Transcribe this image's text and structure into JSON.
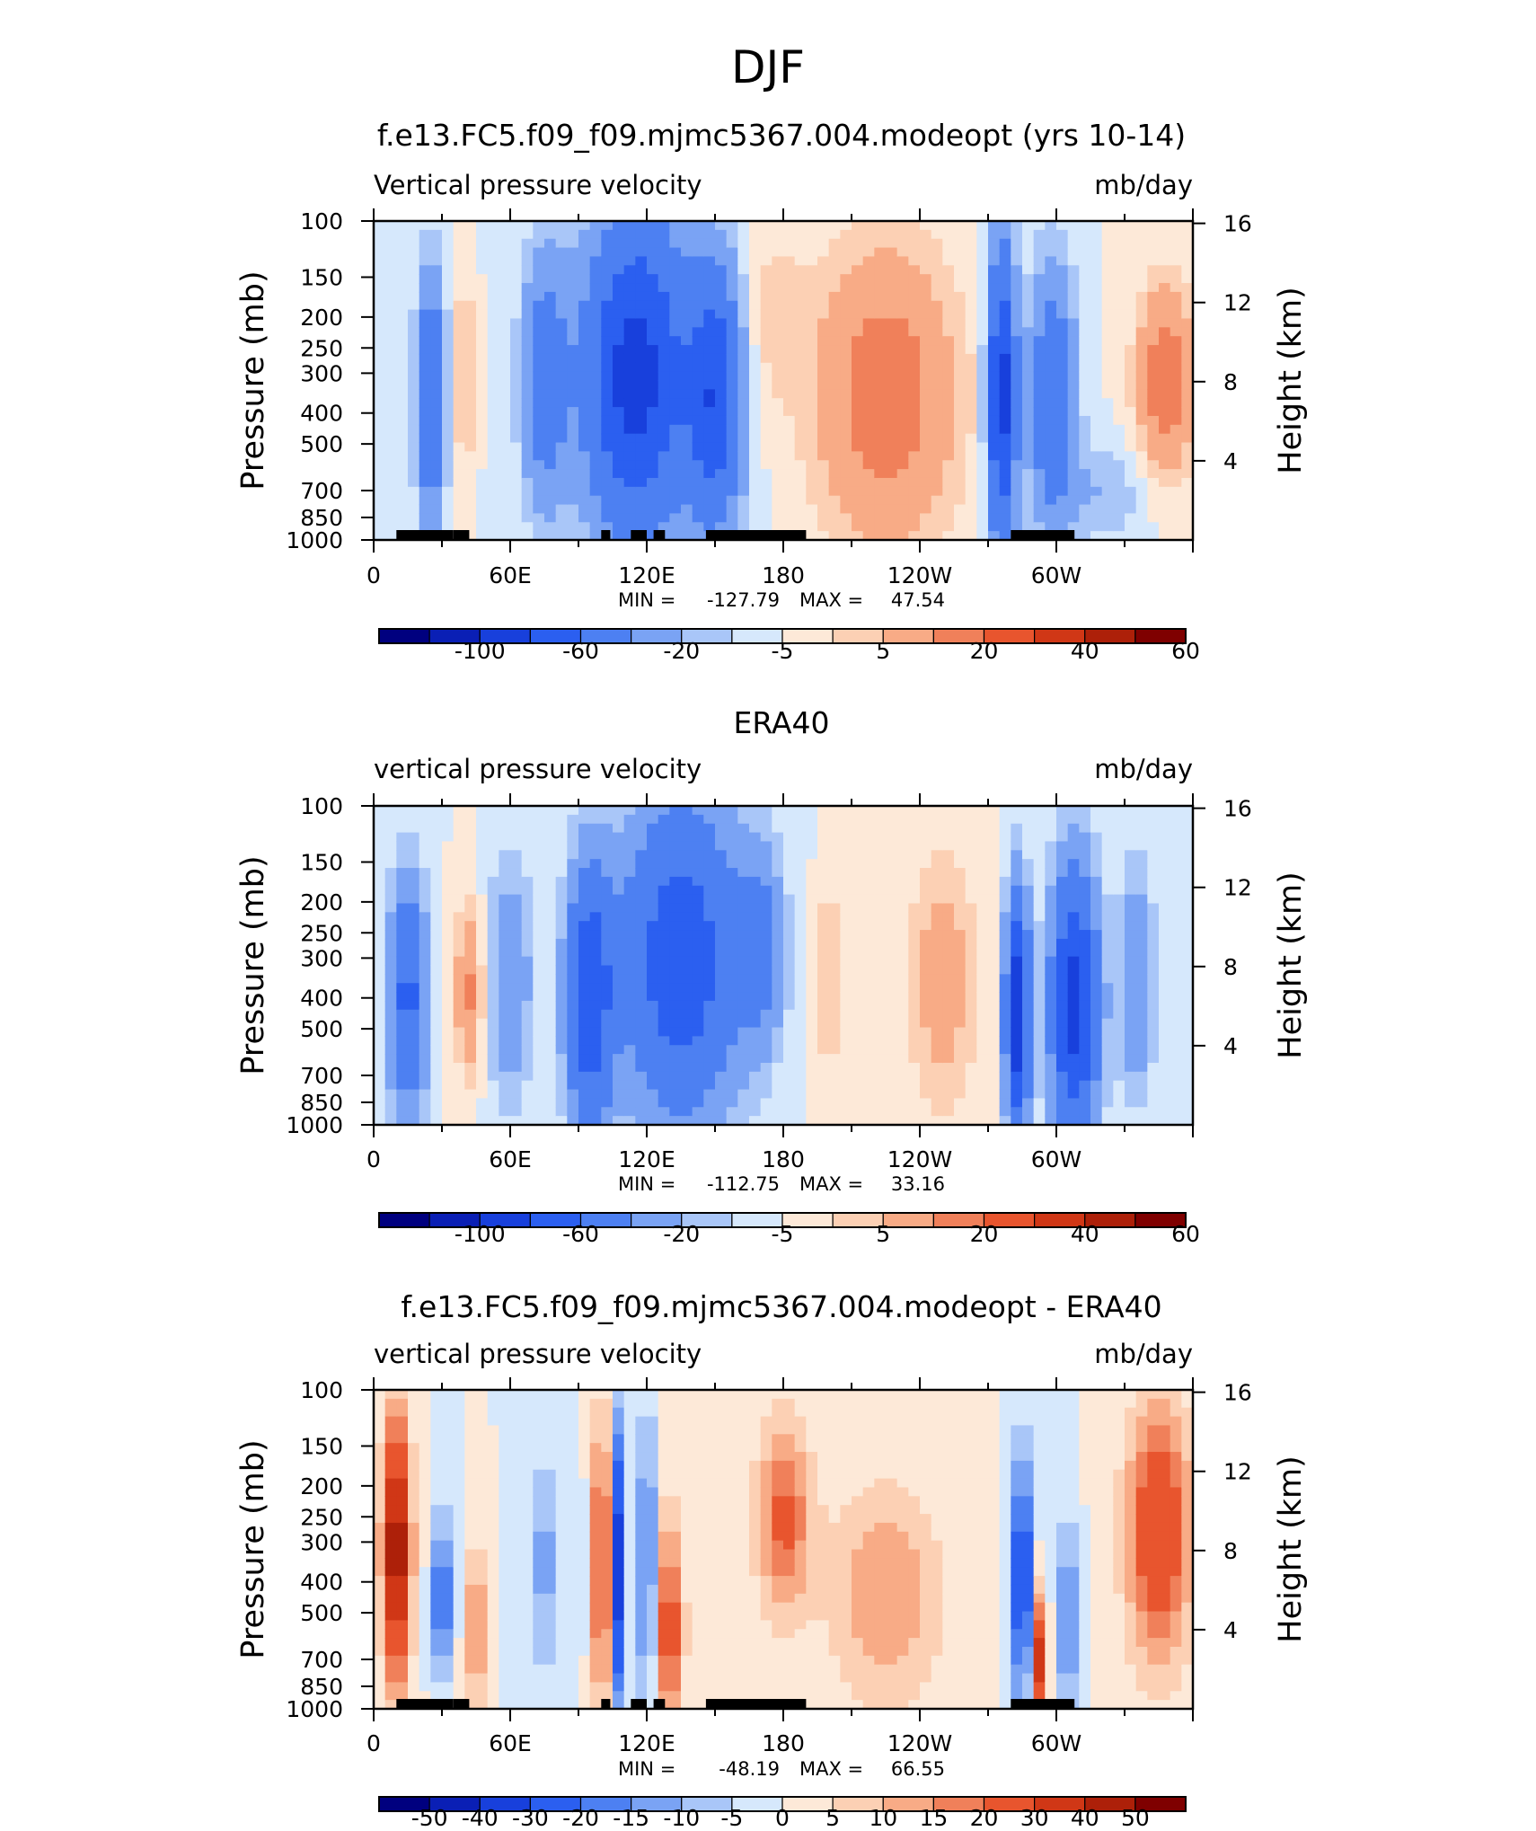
{
  "page": {
    "title": "DJF"
  },
  "colors": {
    "blue_scale": [
      "#00007f",
      "#0a1fb5",
      "#1840dc",
      "#2b5ff0",
      "#4d80f2",
      "#7aa3f4",
      "#a9c6f8",
      "#d6e8fc"
    ],
    "red_scale": [
      "#fde9d8",
      "#fcd0b4",
      "#f8ab86",
      "#f0805a",
      "#e8552e",
      "#d03716",
      "#ad2009",
      "#7f0000"
    ],
    "axis": "#000000",
    "land_mask": "#000000"
  },
  "chart_data": [
    {
      "type": "heatmap",
      "title": "f.e13.FC5.f09_f09.mjmc5367.004.modeopt (yrs 10-14)",
      "left_label": "Vertical pressure velocity",
      "right_label": "mb/day",
      "xlabel": "",
      "ylabel": "Pressure (mb)",
      "y2label": "Height (km)",
      "x_ticklabels": [
        "0",
        "60E",
        "120E",
        "180",
        "120W",
        "60W"
      ],
      "y_ticklabels": [
        "100",
        "150",
        "200",
        "250",
        "300",
        "400",
        "500",
        "700",
        "850",
        "1000"
      ],
      "y2_ticklabels": [
        "16",
        "12",
        "8",
        "4"
      ],
      "stats": {
        "min_label": "MIN =",
        "min": "-127.79",
        "max_label": "MAX =",
        "max": "47.54"
      },
      "colorbar": {
        "labels": [
          "-100",
          "-60",
          "-20",
          "-5",
          "5",
          "20",
          "40",
          "60"
        ]
      },
      "land_mask": true
    },
    {
      "type": "heatmap",
      "title": "ERA40",
      "left_label": "vertical pressure velocity",
      "right_label": "mb/day",
      "xlabel": "",
      "ylabel": "Pressure (mb)",
      "y2label": "Height (km)",
      "x_ticklabels": [
        "0",
        "60E",
        "120E",
        "180",
        "120W",
        "60W"
      ],
      "y_ticklabels": [
        "100",
        "150",
        "200",
        "250",
        "300",
        "400",
        "500",
        "700",
        "850",
        "1000"
      ],
      "y2_ticklabels": [
        "16",
        "12",
        "8",
        "4"
      ],
      "stats": {
        "min_label": "MIN =",
        "min": "-112.75",
        "max_label": "MAX =",
        "max": "33.16"
      },
      "colorbar": {
        "labels": [
          "-100",
          "-60",
          "-20",
          "-5",
          "5",
          "20",
          "40",
          "60"
        ]
      },
      "land_mask": false
    },
    {
      "type": "heatmap",
      "title": "f.e13.FC5.f09_f09.mjmc5367.004.modeopt - ERA40",
      "left_label": "vertical pressure velocity",
      "right_label": "mb/day",
      "xlabel": "",
      "ylabel": "Pressure (mb)",
      "y2label": "Height (km)",
      "x_ticklabels": [
        "0",
        "60E",
        "120E",
        "180",
        "120W",
        "60W"
      ],
      "y_ticklabels": [
        "100",
        "150",
        "200",
        "250",
        "300",
        "400",
        "500",
        "700",
        "850",
        "1000"
      ],
      "y2_ticklabels": [
        "16",
        "12",
        "8",
        "4"
      ],
      "stats": {
        "min_label": "MIN =",
        "min": "-48.19",
        "max_label": "MAX =",
        "max": "66.55"
      },
      "colorbar": {
        "labels": [
          "-50",
          "-40",
          "-30",
          "-20",
          "-15",
          "-10",
          "-5",
          "0",
          "5",
          "10",
          "15",
          "20",
          "30",
          "40",
          "50"
        ]
      },
      "land_mask": true
    }
  ]
}
